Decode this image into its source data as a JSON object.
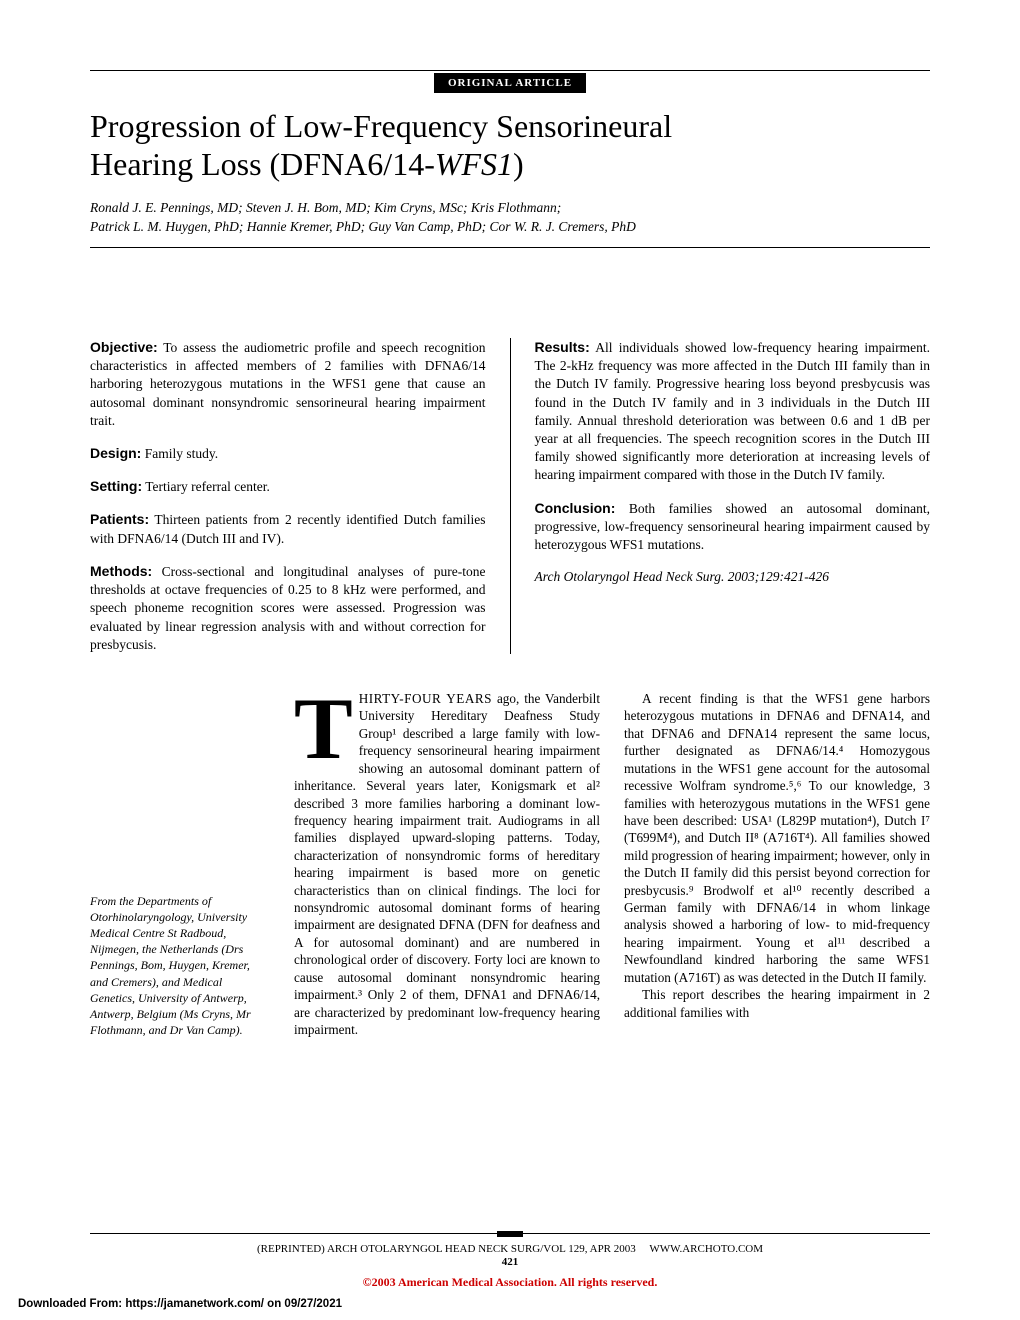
{
  "label": "ORIGINAL ARTICLE",
  "title_line1": "Progression of Low-Frequency Sensorineural",
  "title_line2": "Hearing Loss (DFNA6/14-WFS1)",
  "authors_line1": "Ronald J. E. Pennings, MD; Steven J. H. Bom, MD; Kim Cryns, MSc; Kris Flothmann;",
  "authors_line2": "Patrick L. M. Huygen, PhD; Hannie Kremer, PhD; Guy Van Camp, PhD; Cor W. R. J. Cremers, PhD",
  "abs": {
    "objective_h": "Objective:",
    "objective": " To assess the audiometric profile and speech recognition characteristics in affected members of 2 families with DFNA6/14 harboring heterozygous mutations in the WFS1 gene that cause an autosomal dominant nonsyndromic sensorineural hearing impairment trait.",
    "design_h": "Design:",
    "design": " Family study.",
    "setting_h": "Setting:",
    "setting": " Tertiary referral center.",
    "patients_h": "Patients:",
    "patients": " Thirteen patients from 2 recently identified Dutch families with DFNA6/14 (Dutch III and IV).",
    "methods_h": "Methods:",
    "methods": " Cross-sectional and longitudinal analyses of pure-tone thresholds at octave frequencies of 0.25 to 8 kHz were performed, and speech phoneme recognition scores were assessed. Progression was evaluated by linear regression analysis with and without correction for presbycusis.",
    "results_h": "Results:",
    "results": " All individuals showed low-frequency hearing impairment. The 2-kHz frequency was more affected in the Dutch III family than in the Dutch IV family. Progressive hearing loss beyond presbycusis was found in the Dutch IV family and in 3 individuals in the Dutch III family. Annual threshold deterioration was between 0.6 and 1 dB per year at all frequencies. The speech recognition scores in the Dutch III family showed significantly more deterioration at increasing levels of hearing impairment compared with those in the Dutch IV family.",
    "conclusion_h": "Conclusion:",
    "conclusion": " Both families showed an autosomal dominant, progressive, low-frequency sensorineural hearing impairment caused by heterozygous WFS1 mutations.",
    "citation": "Arch Otolaryngol Head Neck Surg. 2003;129:421-426"
  },
  "affil": "From the Departments of Otorhinolaryngology, University Medical Centre St Radboud, Nijmegen, the Netherlands (Drs Pennings, Bom, Huygen, Kremer, and Cremers), and Medical Genetics, University of Antwerp, Antwerp, Belgium (Ms Cryns, Mr Flothmann, and Dr Van Camp).",
  "body": {
    "dropcap": "T",
    "lead_sc": "HIRTY-FOUR YEARS",
    "col1_rest": " ago, the Vanderbilt University Hereditary Deafness Study Group¹ described a large family with low-frequency sensorineural hearing impairment showing an autosomal dominant pattern of inheritance. Several years later, Konigsmark et al² described 3 more families harboring a dominant low-frequency hearing impairment trait. Audiograms in all families displayed upward-sloping patterns. Today, characterization of nonsyndromic forms of hereditary hearing impairment is based more on genetic characteristics than on clinical findings. The loci for nonsyndromic autosomal dominant forms of hearing impairment are designated DFNA (DFN for deafness and A for autosomal dominant) and are numbered in chronological order of discovery. Forty loci are known to cause autosomal dominant nonsyndromic hearing impairment.³ Only 2 of them, DFNA1 and DFNA6/14, are characterized by predominant low-frequency hearing impairment.",
    "col2_p1": "A recent finding is that the WFS1 gene harbors heterozygous mutations in DFNA6 and DFNA14, and that DFNA6 and DFNA14 represent the same locus, further designated as DFNA6/14.⁴ Homozygous mutations in the WFS1 gene account for the autosomal recessive Wolfram syndrome.⁵,⁶ To our knowledge, 3 families with heterozygous mutations in the WFS1 gene have been described: USA¹ (L829P mutation⁴), Dutch I⁷ (T699M⁴), and Dutch II⁸ (A716T⁴). All families showed mild progression of hearing impairment; however, only in the Dutch II family did this persist beyond correction for presbycusis.⁹ Brodwolf et al¹⁰ recently described a German family with DFNA6/14 in whom linkage analysis showed a harboring of low- to mid-frequency hearing impairment. Young et al¹¹ described a Newfoundland kindred harboring the same WFS1 mutation (A716T) as was detected in the Dutch II family.",
    "col2_p2": "This report describes the hearing impairment in 2 additional families with"
  },
  "footer": {
    "line": "(REPRINTED) ARCH OTOLARYNGOL HEAD NECK SURG/VOL 129, APR 2003",
    "url": "WWW.ARCHOTO.COM",
    "page": "421"
  },
  "copyright": "©2003 American Medical Association. All rights reserved.",
  "downloaded": "Downloaded From: https://jamanetwork.com/ on 09/27/2021"
}
